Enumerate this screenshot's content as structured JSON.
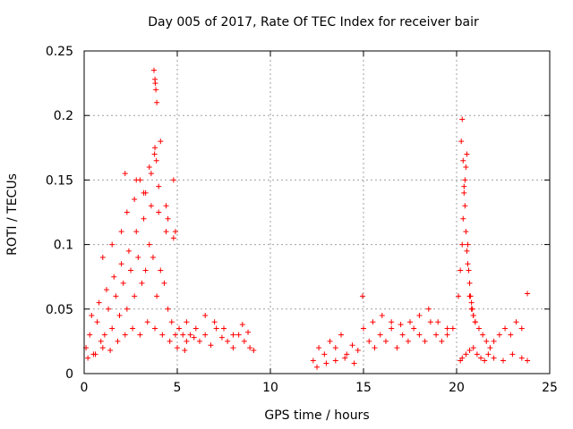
{
  "chart_data": {
    "type": "scatter",
    "title": "Day 005 of 2017, Rate Of TEC Index for receiver bair",
    "xlabel": "GPS time / hours",
    "ylabel": "ROTI / TECUs",
    "xlim": [
      0,
      25
    ],
    "ylim": [
      0,
      0.25
    ],
    "xticks": [
      0,
      5,
      10,
      15,
      20,
      25
    ],
    "xtick_labels": [
      "0",
      "5",
      "10",
      "15",
      "20",
      "25"
    ],
    "yticks": [
      0,
      0.05,
      0.1,
      0.15,
      0.2,
      0.25
    ],
    "ytick_labels": [
      "0",
      "0.05",
      "0.1",
      "0.15",
      "0.2",
      "0.25"
    ],
    "grid": true,
    "marker": "+",
    "color": "#ff0000",
    "series": [
      {
        "x": [
          0.1,
          0.3,
          0.5,
          0.7,
          0.9,
          1.1,
          1.3,
          1.5,
          1.7,
          1.9,
          2.1,
          2.3,
          2.5,
          2.7,
          2.9,
          3.1,
          3.3,
          3.5,
          3.7,
          3.9,
          4.1,
          4.3,
          4.5,
          4.7,
          4.9,
          5.1,
          5.3,
          5.5,
          5.7,
          5.9,
          6.2,
          6.5,
          6.8,
          7.1,
          7.4,
          7.7,
          8.0,
          8.3,
          8.6,
          8.9,
          9.1,
          0.2,
          0.6,
          1.0,
          1.4,
          1.8,
          2.2,
          2.6,
          3.0,
          3.4,
          3.8,
          4.2,
          4.6,
          5.0,
          5.4,
          0.4,
          0.8,
          1.2,
          1.6,
          2.0,
          2.4,
          2.8,
          3.2,
          3.6,
          4.0,
          4.4,
          4.8,
          1.0,
          1.5,
          2.0,
          2.3,
          2.7,
          3.0,
          3.3,
          3.6,
          4.0,
          4.4,
          4.8,
          2.2,
          2.8,
          3.2,
          3.5,
          3.8,
          4.1,
          4.5,
          4.9,
          3.75,
          3.8,
          3.85,
          3.9,
          3.82,
          3.78,
          3.88,
          5.5,
          6.0,
          6.5,
          7.0,
          7.5,
          8.0,
          8.5,
          8.8,
          12.3,
          12.6,
          12.9,
          13.2,
          13.5,
          13.8,
          14.1,
          14.4,
          14.7,
          15.0,
          15.3,
          15.6,
          15.9,
          16.2,
          16.5,
          16.8,
          17.1,
          17.4,
          17.7,
          18.0,
          18.3,
          18.6,
          18.9,
          19.2,
          19.5,
          19.8,
          12.5,
          13.0,
          13.5,
          14.0,
          14.5,
          14.95,
          15.5,
          16.0,
          16.5,
          17.0,
          17.5,
          18.0,
          18.5,
          19.0,
          19.5,
          20.1,
          20.2,
          20.3,
          20.35,
          20.4,
          20.45,
          20.5,
          20.55,
          20.6,
          20.7,
          20.8,
          20.9,
          21.0,
          21.2,
          21.4,
          21.6,
          21.8,
          22.0,
          22.3,
          22.6,
          22.9,
          23.2,
          23.5,
          23.8,
          20.25,
          20.3,
          20.35,
          20.4,
          20.45,
          20.5,
          20.55,
          20.6,
          20.65,
          20.7,
          20.75,
          20.8,
          20.85,
          20.9,
          21.0,
          20.2,
          20.3,
          20.5,
          20.7,
          20.9,
          21.1,
          21.3,
          21.5,
          21.7,
          22.0,
          22.5,
          23.0,
          23.5,
          23.8
        ],
        "y": [
          0.02,
          0.03,
          0.015,
          0.04,
          0.025,
          0.03,
          0.05,
          0.035,
          0.06,
          0.045,
          0.07,
          0.05,
          0.08,
          0.06,
          0.09,
          0.07,
          0.08,
          0.1,
          0.09,
          0.06,
          0.08,
          0.07,
          0.05,
          0.04,
          0.03,
          0.035,
          0.03,
          0.025,
          0.03,
          0.028,
          0.025,
          0.03,
          0.022,
          0.035,
          0.028,
          0.025,
          0.02,
          0.03,
          0.025,
          0.02,
          0.018,
          0.012,
          0.015,
          0.02,
          0.018,
          0.025,
          0.03,
          0.035,
          0.03,
          0.04,
          0.035,
          0.03,
          0.025,
          0.02,
          0.018,
          0.045,
          0.055,
          0.065,
          0.075,
          0.085,
          0.095,
          0.11,
          0.12,
          0.13,
          0.125,
          0.11,
          0.105,
          0.09,
          0.1,
          0.11,
          0.125,
          0.135,
          0.15,
          0.14,
          0.155,
          0.145,
          0.13,
          0.15,
          0.155,
          0.15,
          0.14,
          0.16,
          0.175,
          0.18,
          0.12,
          0.11,
          0.235,
          0.228,
          0.22,
          0.21,
          0.225,
          0.17,
          0.165,
          0.04,
          0.035,
          0.045,
          0.04,
          0.035,
          0.03,
          0.038,
          0.032,
          0.01,
          0.02,
          0.015,
          0.025,
          0.02,
          0.03,
          0.015,
          0.022,
          0.018,
          0.035,
          0.025,
          0.02,
          0.03,
          0.025,
          0.04,
          0.02,
          0.03,
          0.025,
          0.035,
          0.03,
          0.025,
          0.04,
          0.03,
          0.025,
          0.03,
          0.035,
          0.005,
          0.008,
          0.01,
          0.012,
          0.008,
          0.06,
          0.04,
          0.045,
          0.035,
          0.038,
          0.04,
          0.045,
          0.05,
          0.04,
          0.035,
          0.06,
          0.08,
          0.1,
          0.12,
          0.14,
          0.15,
          0.16,
          0.17,
          0.1,
          0.06,
          0.05,
          0.045,
          0.04,
          0.035,
          0.03,
          0.025,
          0.02,
          0.025,
          0.03,
          0.035,
          0.03,
          0.04,
          0.035,
          0.062,
          0.18,
          0.197,
          0.165,
          0.145,
          0.13,
          0.11,
          0.095,
          0.085,
          0.08,
          0.07,
          0.06,
          0.055,
          0.05,
          0.045,
          0.04,
          0.01,
          0.012,
          0.015,
          0.018,
          0.02,
          0.015,
          0.012,
          0.01,
          0.015,
          0.012,
          0.01,
          0.015,
          0.012,
          0.01
        ]
      }
    ]
  }
}
